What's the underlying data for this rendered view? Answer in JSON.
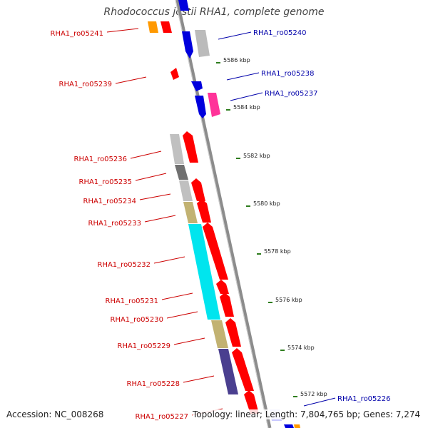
{
  "title": "Rhodococcus jostii RHA1, complete genome",
  "accession": "Accession: NC_008268",
  "summary": "Topology: linear; Length: 7,804,765 bp; Genes: 7,274",
  "colors": {
    "backbone": "#8c8c8c",
    "guide": "#2e7d1e",
    "left_label": "#cc0000",
    "right_label": "#0000aa"
  },
  "scale": [
    {
      "kbp": 5586,
      "label": "5586 kbp"
    },
    {
      "kbp": 5584,
      "label": "5584 kbp"
    },
    {
      "kbp": 5582,
      "label": "5582 kbp"
    },
    {
      "kbp": 5580,
      "label": "5580 kbp"
    },
    {
      "kbp": 5578,
      "label": "5578 kbp"
    },
    {
      "kbp": 5576,
      "label": "5576 kbp"
    },
    {
      "kbp": 5574,
      "label": "5574 kbp"
    },
    {
      "kbp": 5572,
      "label": "5572 kbp"
    }
  ],
  "left_labels": [
    {
      "text": "RHA1_ro05241"
    },
    {
      "text": "RHA1_ro05239"
    },
    {
      "text": "RHA1_ro05236"
    },
    {
      "text": "RHA1_ro05235"
    },
    {
      "text": "RHA1_ro05234"
    },
    {
      "text": "RHA1_ro05233"
    },
    {
      "text": "RHA1_ro05232"
    },
    {
      "text": "RHA1_ro05231"
    },
    {
      "text": "RHA1_ro05230"
    },
    {
      "text": "RHA1_ro05229"
    },
    {
      "text": "RHA1_ro05228"
    },
    {
      "text": "RHA1_ro05227"
    }
  ],
  "right_labels": [
    {
      "text": "RHA1_ro05240"
    },
    {
      "text": "RHA1_ro05238"
    },
    {
      "text": "RHA1_ro05237"
    },
    {
      "text": "RHA1_ro05226"
    }
  ]
}
